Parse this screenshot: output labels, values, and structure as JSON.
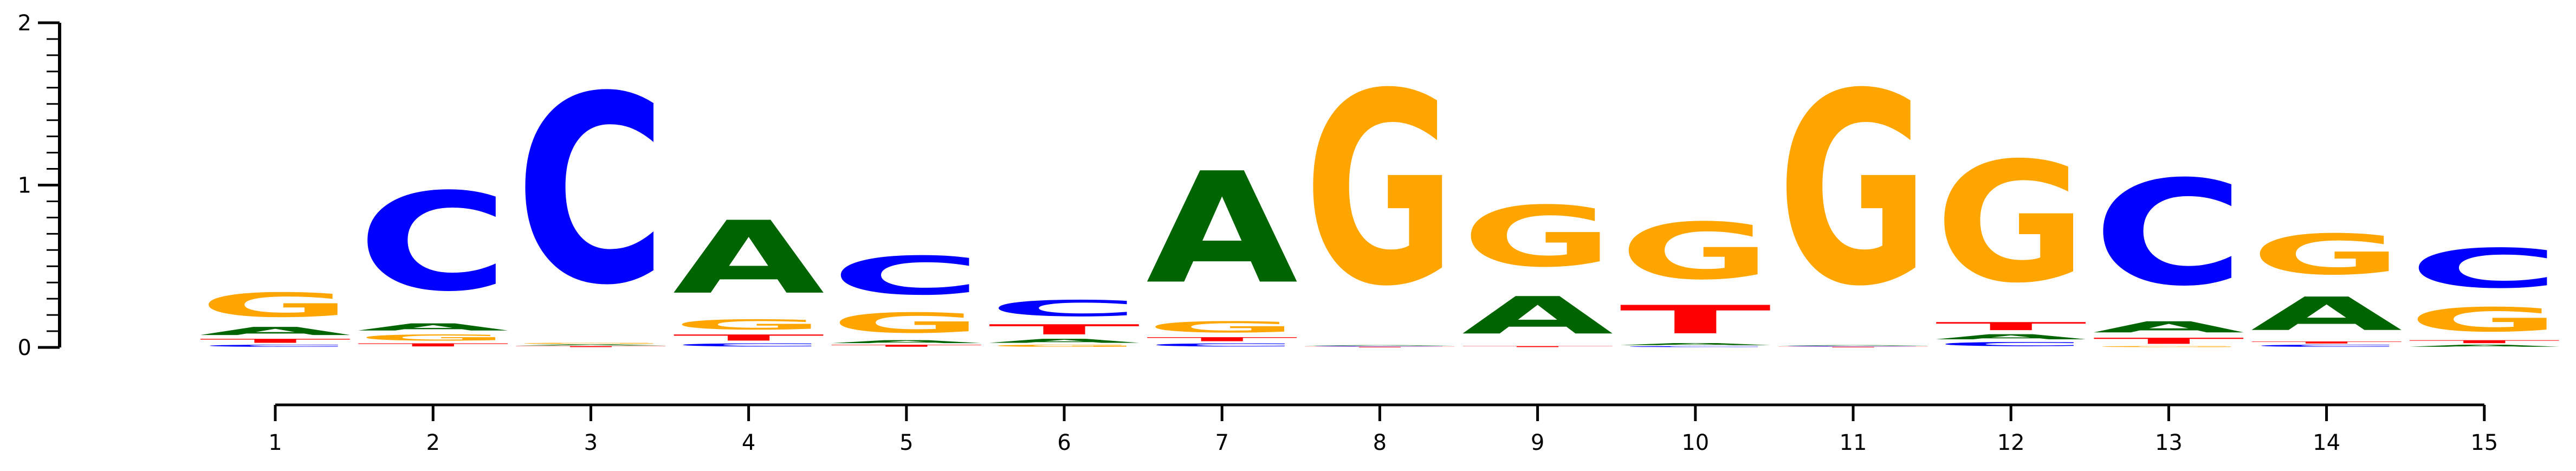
{
  "chart_data": {
    "type": "sequence_logo",
    "title": "",
    "xlabel": "",
    "ylabel": "",
    "ylim": [
      0,
      2
    ],
    "y_ticks": [
      "0",
      "1",
      "2"
    ],
    "x_ticks": [
      "1",
      "2",
      "3",
      "4",
      "5",
      "6",
      "7",
      "8",
      "9",
      "10",
      "11",
      "12",
      "13",
      "14",
      "15"
    ],
    "colors": {
      "A": "#006400",
      "C": "#0000ff",
      "G": "#ffa500",
      "T": "#ff0000"
    },
    "positions": [
      {
        "pos": 1,
        "stack": [
          [
            "C",
            0.02
          ],
          [
            "T",
            0.04
          ],
          [
            "A",
            0.08
          ],
          [
            "G",
            0.24
          ]
        ]
      },
      {
        "pos": 2,
        "stack": [
          [
            "T",
            0.03
          ],
          [
            "G",
            0.06
          ],
          [
            "A",
            0.07
          ],
          [
            "C",
            0.97
          ]
        ]
      },
      {
        "pos": 3,
        "stack": [
          [
            "T",
            0.01
          ],
          [
            "A",
            0.01
          ],
          [
            "G",
            0.01
          ],
          [
            "C",
            1.86
          ]
        ]
      },
      {
        "pos": 4,
        "stack": [
          [
            "C",
            0.03
          ],
          [
            "T",
            0.06
          ],
          [
            "G",
            0.1
          ],
          [
            "A",
            0.72
          ]
        ]
      },
      {
        "pos": 5,
        "stack": [
          [
            "T",
            0.02
          ],
          [
            "A",
            0.03
          ],
          [
            "G",
            0.2
          ],
          [
            "C",
            0.38
          ]
        ]
      },
      {
        "pos": 6,
        "stack": [
          [
            "G",
            0.02
          ],
          [
            "A",
            0.04
          ],
          [
            "T",
            0.1
          ],
          [
            "C",
            0.16
          ]
        ]
      },
      {
        "pos": 7,
        "stack": [
          [
            "C",
            0.03
          ],
          [
            "T",
            0.04
          ],
          [
            "G",
            0.11
          ],
          [
            "A",
            1.1
          ]
        ]
      },
      {
        "pos": 8,
        "stack": [
          [
            "T",
            0.005
          ],
          [
            "C",
            0.005
          ],
          [
            "A",
            0.005
          ],
          [
            "G",
            1.9
          ]
        ]
      },
      {
        "pos": 9,
        "stack": [
          [
            "T",
            0.01
          ],
          [
            "A",
            0.37
          ],
          [
            "G",
            0.6
          ]
        ]
      },
      {
        "pos": 10,
        "stack": [
          [
            "C",
            0.01
          ],
          [
            "A",
            0.02
          ],
          [
            "T",
            0.28
          ],
          [
            "G",
            0.56
          ]
        ]
      },
      {
        "pos": 11,
        "stack": [
          [
            "T",
            0.005
          ],
          [
            "C",
            0.005
          ],
          [
            "A",
            0.005
          ],
          [
            "G",
            1.9
          ]
        ]
      },
      {
        "pos": 12,
        "stack": [
          [
            "C",
            0.04
          ],
          [
            "A",
            0.05
          ],
          [
            "T",
            0.08
          ],
          [
            "G",
            1.19
          ]
        ]
      },
      {
        "pos": 13,
        "stack": [
          [
            "G",
            0.01
          ],
          [
            "T",
            0.06
          ],
          [
            "A",
            0.11
          ],
          [
            "C",
            1.04
          ]
        ]
      },
      {
        "pos": 14,
        "stack": [
          [
            "C",
            0.02
          ],
          [
            "T",
            0.02
          ],
          [
            "A",
            0.33
          ],
          [
            "G",
            0.4
          ]
        ]
      },
      {
        "pos": 15,
        "stack": [
          [
            "A",
            0.02
          ],
          [
            "T",
            0.03
          ],
          [
            "G",
            0.24
          ],
          [
            "C",
            0.39
          ]
        ]
      }
    ]
  }
}
